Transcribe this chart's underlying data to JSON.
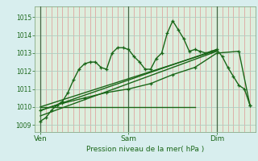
{
  "background_color": "#d8eeee",
  "plot_bg": "#ddeedd",
  "grid_color_h": "#b0ccc0",
  "red_grid_color": "#dd8888",
  "line_color": "#1a6618",
  "ylabel_ticks": [
    1009,
    1010,
    1011,
    1012,
    1013,
    1014,
    1015
  ],
  "ylim": [
    1008.6,
    1015.6
  ],
  "xlabel": "Pression niveau de la mer( hPa )",
  "day_labels": [
    "Ven",
    "Sam",
    "Dim"
  ],
  "day_positions": [
    0,
    48,
    96
  ],
  "total_hours": 114,
  "xlim": [
    -3,
    117
  ],
  "series1": {
    "x": [
      0,
      3,
      6,
      9,
      12,
      15,
      18,
      21,
      24,
      27,
      30,
      33,
      36,
      39,
      42,
      45,
      48,
      51,
      54,
      57,
      60,
      63,
      66,
      69,
      72,
      75,
      78,
      81,
      84,
      87,
      90,
      93,
      96,
      99,
      102,
      105,
      108,
      111,
      114
    ],
    "y": [
      1009.2,
      1009.4,
      1009.8,
      1010.1,
      1010.3,
      1010.8,
      1011.5,
      1012.1,
      1012.4,
      1012.5,
      1012.5,
      1012.2,
      1012.1,
      1013.0,
      1013.3,
      1013.3,
      1013.2,
      1012.8,
      1012.5,
      1012.1,
      1012.1,
      1012.7,
      1013.0,
      1014.1,
      1014.8,
      1014.3,
      1013.8,
      1013.1,
      1013.2,
      1013.1,
      1013.0,
      1013.1,
      1013.2,
      1012.8,
      1012.2,
      1011.7,
      1011.2,
      1011.0,
      1010.1
    ]
  },
  "series2": {
    "x": [
      0,
      12,
      24,
      36,
      48,
      60,
      72,
      84,
      96,
      108,
      114
    ],
    "y": [
      1009.8,
      1010.2,
      1010.5,
      1010.8,
      1011.0,
      1011.3,
      1011.8,
      1012.2,
      1013.0,
      1013.1,
      1010.1
    ]
  },
  "series3_linear": {
    "x": [
      0,
      96
    ],
    "y": [
      1009.8,
      1013.2
    ]
  },
  "series4_flat": {
    "x": [
      0,
      84
    ],
    "y": [
      1010.0,
      1010.0
    ]
  },
  "series5_linear2": {
    "x": [
      0,
      96
    ],
    "y": [
      1009.5,
      1013.1
    ]
  },
  "series6_linear3": {
    "x": [
      0,
      96
    ],
    "y": [
      1010.0,
      1013.15
    ]
  }
}
